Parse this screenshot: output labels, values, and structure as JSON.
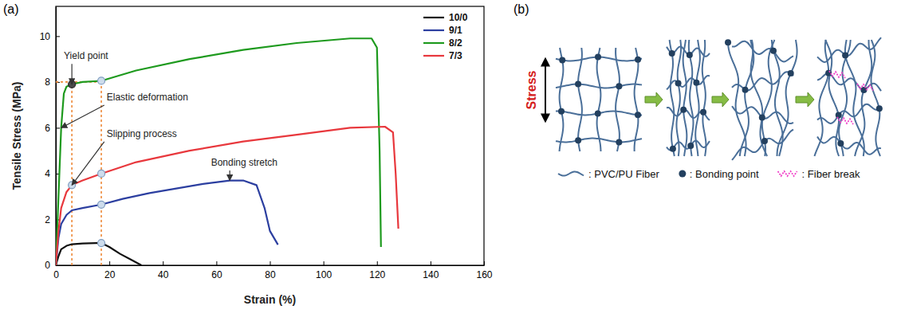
{
  "chart_data": {
    "type": "line",
    "panel_label": "(a)",
    "x_label": "Strain (%)",
    "y_label": "Tensile Stress (MPa)",
    "xlim": [
      0,
      160
    ],
    "xticks": [
      0,
      20,
      40,
      60,
      80,
      100,
      120,
      140,
      160
    ],
    "ylim": [
      0,
      11.3
    ],
    "yticks": [
      0,
      2,
      4,
      6,
      8,
      10
    ],
    "legend": "upper right",
    "series": [
      {
        "name": "10/0",
        "color": "#111111",
        "x": [
          0,
          1,
          2,
          4,
          6,
          10,
          15,
          17,
          20,
          24,
          28,
          32
        ],
        "values": [
          0,
          0.4,
          0.7,
          0.85,
          0.92,
          0.95,
          0.97,
          0.97,
          0.8,
          0.5,
          0.25,
          0
        ]
      },
      {
        "name": "9/1",
        "color": "#2c3fa0",
        "x": [
          0,
          1,
          2,
          4,
          6,
          10,
          17,
          25,
          35,
          45,
          55,
          65,
          70,
          75,
          78,
          80,
          83
        ],
        "values": [
          0,
          1.2,
          1.8,
          2.2,
          2.4,
          2.5,
          2.65,
          2.9,
          3.15,
          3.35,
          3.55,
          3.7,
          3.7,
          3.5,
          2.5,
          1.5,
          0.9
        ]
      },
      {
        "name": "8/2",
        "color": "#1e9a1e",
        "x": [
          0,
          1,
          2,
          3,
          4,
          6,
          10,
          17,
          30,
          50,
          70,
          90,
          110,
          118,
          120,
          121,
          121.5
        ],
        "values": [
          0,
          3,
          6,
          7.5,
          7.8,
          7.9,
          8.0,
          8.05,
          8.5,
          9.0,
          9.4,
          9.7,
          9.9,
          9.9,
          9.5,
          5,
          0.8
        ]
      },
      {
        "name": "7/3",
        "color": "#e8383d",
        "x": [
          0,
          1,
          2,
          4,
          6,
          10,
          17,
          30,
          50,
          70,
          90,
          110,
          123,
          126,
          127,
          128
        ],
        "values": [
          0,
          1.5,
          2.5,
          3.2,
          3.5,
          3.7,
          4.0,
          4.5,
          5.0,
          5.4,
          5.7,
          6.0,
          6.05,
          5.8,
          4.0,
          1.6
        ]
      }
    ],
    "guides": [
      {
        "x": [
          0,
          17
        ],
        "y": [
          8,
          8
        ]
      },
      {
        "x": [
          6,
          6
        ],
        "y": [
          0,
          8
        ]
      },
      {
        "x": [
          17,
          17
        ],
        "y": [
          0,
          8
        ]
      }
    ],
    "points": {
      "x": [
        6,
        17,
        6,
        17,
        17,
        17
      ],
      "y": [
        7.9,
        8.05,
        3.5,
        4.0,
        2.65,
        0.97
      ]
    },
    "annotations": [
      {
        "text": "Yield point",
        "x": 3,
        "y": 9.0,
        "arrow_x": 6,
        "arrow_y": 7.9
      },
      {
        "text": "Elastic deformation",
        "x": 19,
        "y": 7.2,
        "arrow_x": 2,
        "arrow_y": 6
      },
      {
        "text": "Slipping process",
        "x": 19,
        "y": 5.6,
        "arrow_x": 6,
        "arrow_y": 3.5
      },
      {
        "text": "Bonding stretch",
        "x": 58,
        "y": 4.35,
        "arrow_x": 65,
        "arrow_y": 3.7
      }
    ]
  },
  "diagram": {
    "panel_label": "(b)",
    "axis_label": "Stress",
    "legend_items": [
      ": PVC/PU Fiber",
      ": Bonding point",
      ": Fiber break"
    ]
  }
}
